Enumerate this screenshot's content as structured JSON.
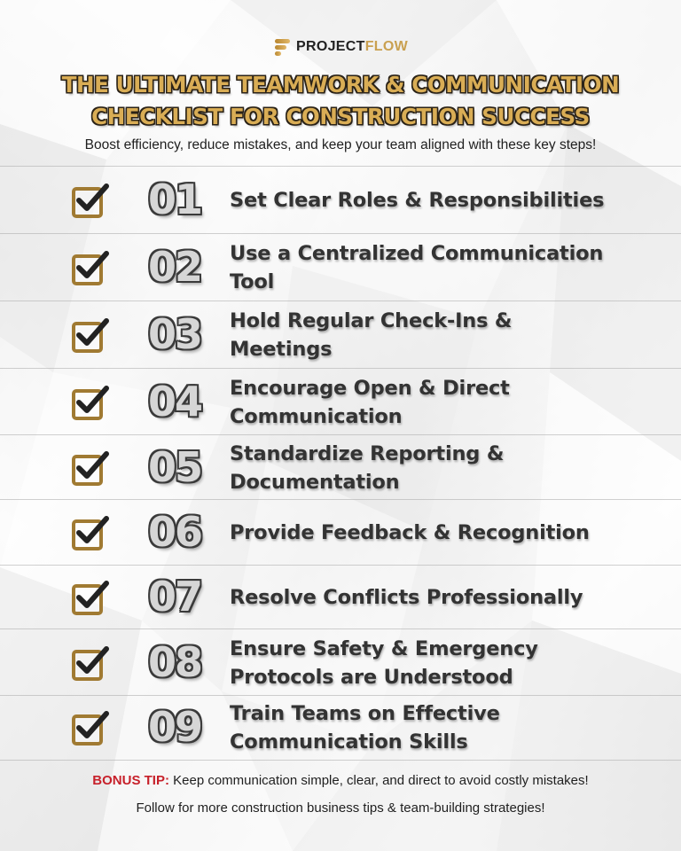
{
  "brand": {
    "name_part1": "PROJECT",
    "name_part2": "FLOW",
    "accent_color": "#c9a050"
  },
  "title": {
    "line1": "THE ULTIMATE TEAMWORK & COMMUNICATION",
    "line2": "CHECKLIST FOR CONSTRUCTION SUCCESS",
    "color": "#d9ad55"
  },
  "subtitle": "Boost efficiency, reduce mistakes, and keep your team aligned with these key steps!",
  "checklist": [
    {
      "number": "01",
      "text": "Set Clear Roles & Responsibilities",
      "icon": "checkbox-icon"
    },
    {
      "number": "02",
      "text": "Use a Centralized Communication Tool",
      "icon": "checkbox-icon"
    },
    {
      "number": "03",
      "text": "Hold Regular Check-Ins & Meetings",
      "icon": "checkbox-icon"
    },
    {
      "number": "04",
      "text": "Encourage Open & Direct Communication",
      "icon": "checkbox-icon"
    },
    {
      "number": "05",
      "text": "Standardize Reporting & Documentation",
      "icon": "checkbox-icon"
    },
    {
      "number": "06",
      "text": "Provide Feedback & Recognition",
      "icon": "checkbox-icon"
    },
    {
      "number": "07",
      "text": "Resolve Conflicts Professionally",
      "icon": "checkbox-icon"
    },
    {
      "number": "08",
      "text": "Ensure Safety & Emergency Protocols are Understood",
      "icon": "checkbox-icon"
    },
    {
      "number": "09",
      "text": "Train Teams on Effective Communication Skills",
      "icon": "checkbox-icon"
    }
  ],
  "bonus": {
    "label": "BONUS TIP:",
    "text": " Keep communication simple, clear, and direct to avoid costly mistakes!",
    "label_color": "#c7202a"
  },
  "footer": "Follow for more construction business tips & team-building strategies!"
}
